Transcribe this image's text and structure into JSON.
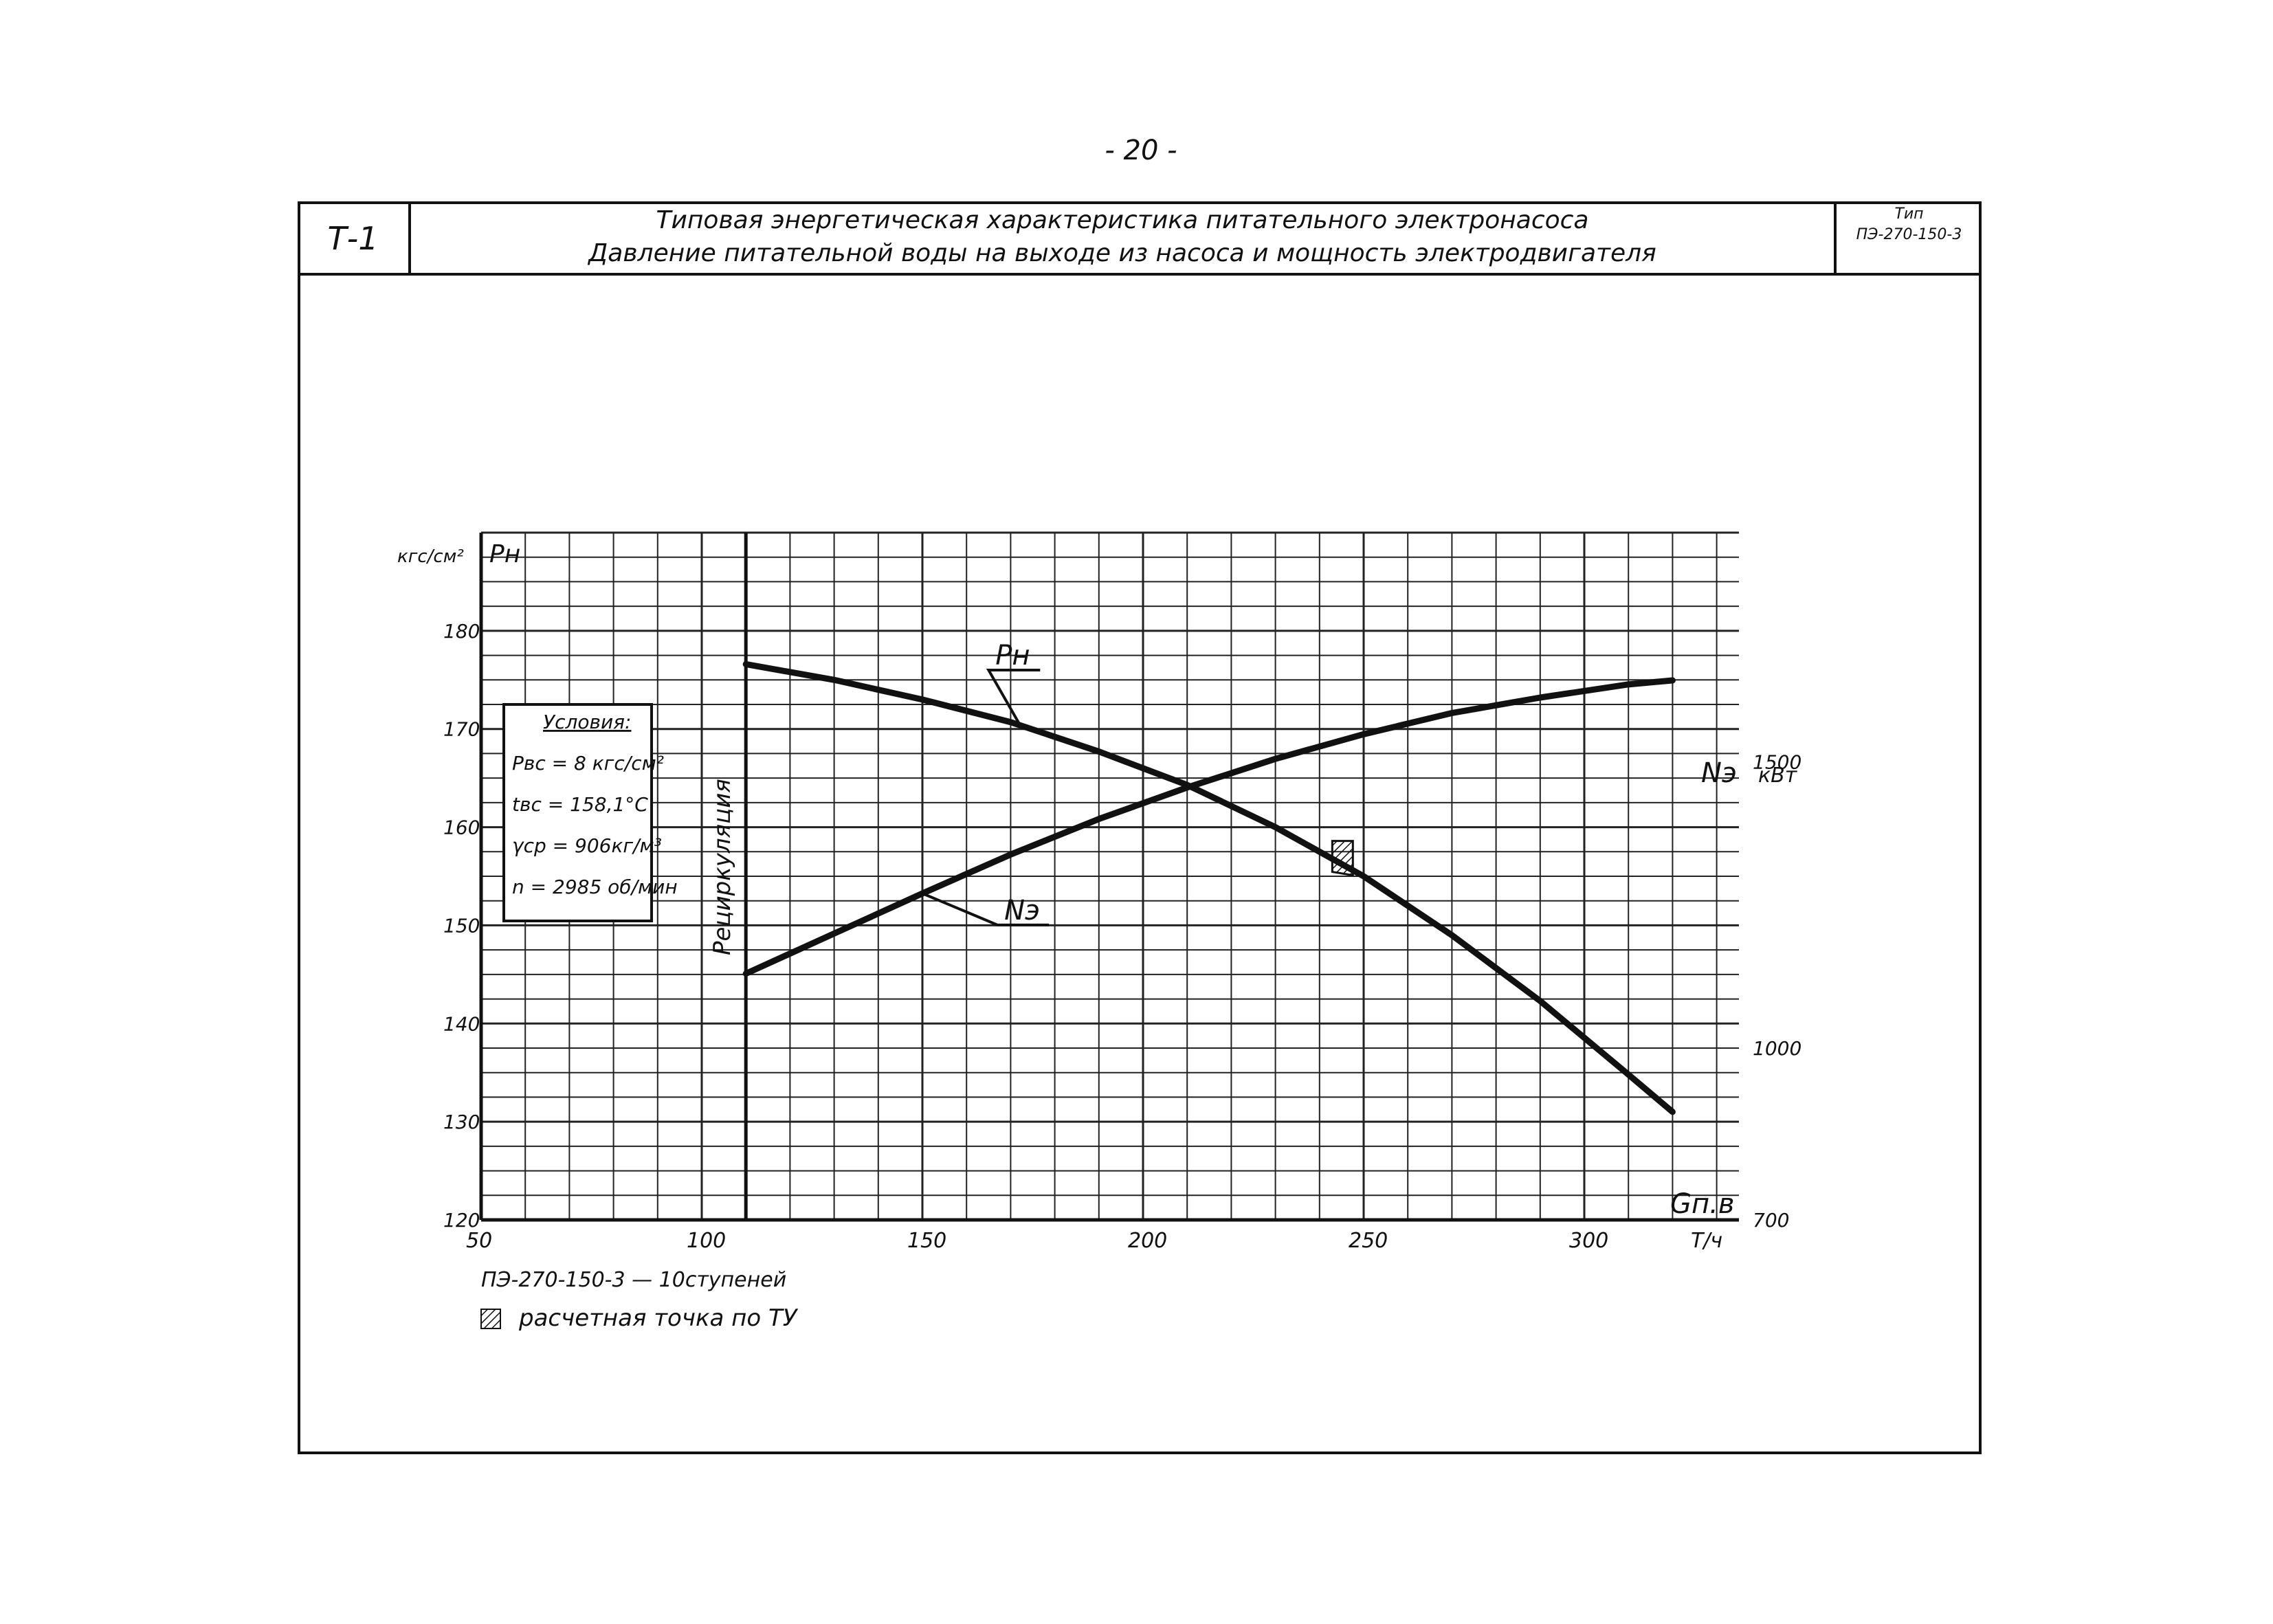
{
  "page_number": "- 20 -",
  "title_block": {
    "code": "Т-1",
    "title_line1": "Типовая энергетическая характеристика питательного электронасоса",
    "title_line2": "Давление питательной воды на выходе из насоса и мощность электродвигателя",
    "type_label": "Тип",
    "type_value": "ПЭ-270-150-3"
  },
  "conditions": {
    "heading": "Условия:",
    "lines": [
      "Pвс = 8 кгс/см²",
      "tвс = 158,1°С",
      "γср = 906кг/м³",
      "n = 2985 об/мин"
    ]
  },
  "recirculation_label": "Рециркуляция",
  "pump_note": "ПЭ-270-150-3 — 10ступеней",
  "legend_note": "расчетная точка по ТУ",
  "chart_data": {
    "type": "line",
    "x_axis": {
      "label": "Gп.в",
      "unit": "Т/ч",
      "range": [
        50,
        300
      ],
      "ticks": [
        50,
        100,
        150,
        200,
        250,
        300
      ]
    },
    "y_left": {
      "label": "Pн",
      "unit": "кгс/см²",
      "range": [
        120,
        190
      ],
      "ticks": [
        120,
        130,
        140,
        150,
        160,
        170,
        180
      ]
    },
    "y_right": {
      "label": "Nэ",
      "unit": "кВт",
      "range": [
        700,
        1900
      ],
      "ticks": [
        700,
        1000,
        1500
      ]
    },
    "grid": true,
    "series": [
      {
        "name": "Pн",
        "axis": "left",
        "x": [
          110,
          130,
          150,
          170,
          190,
          210,
          230,
          250,
          270,
          290,
          310,
          320
        ],
        "y": [
          176.6,
          175.0,
          173.0,
          170.7,
          167.7,
          164.3,
          160.0,
          155.0,
          149.0,
          142.3,
          134.8,
          131.0
        ],
        "label_at": [
          165,
          176
        ]
      },
      {
        "name": "Nэ",
        "axis": "right",
        "x": [
          110,
          130,
          150,
          170,
          190,
          210,
          230,
          250,
          270,
          290,
          310,
          320
        ],
        "y": [
          1130,
          1200,
          1270,
          1338,
          1400,
          1455,
          1505,
          1548,
          1585,
          1612,
          1635,
          1642
        ],
        "label_at": [
          167,
          1215
        ]
      }
    ],
    "design_point": {
      "x": 246,
      "y_left": 156.5
    },
    "recirculation_limit_x": 110
  }
}
